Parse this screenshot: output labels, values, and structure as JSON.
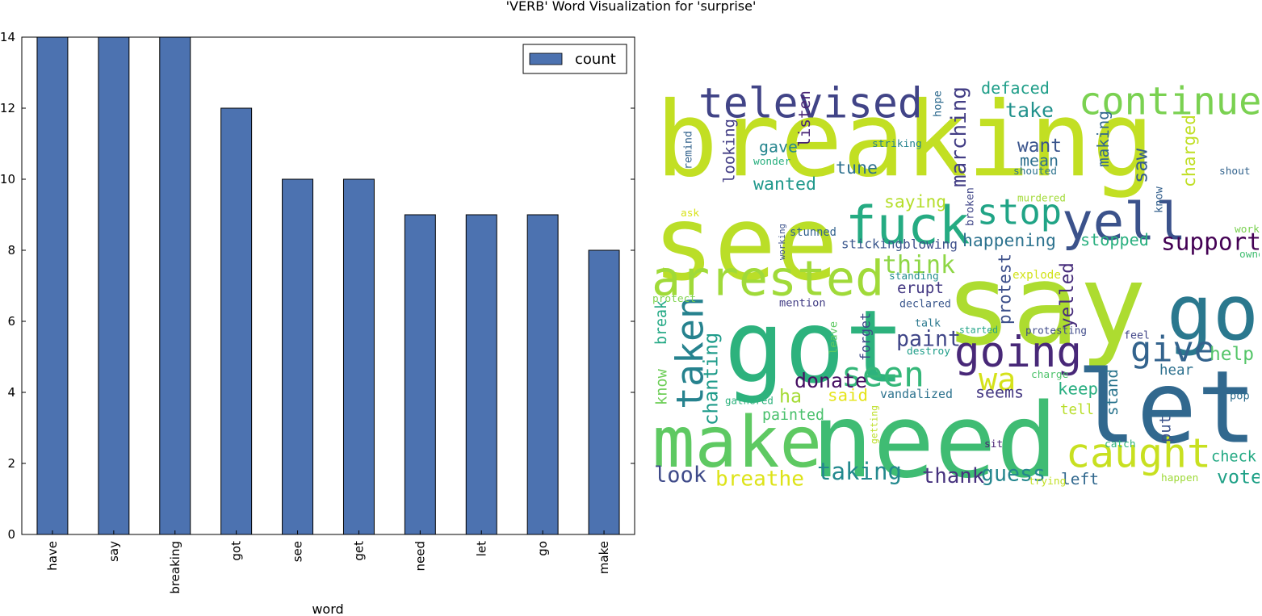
{
  "figure_title": "'VERB' Word Visualization for 'surprise'",
  "chart_data": [
    {
      "type": "bar",
      "title": "",
      "xlabel": "word",
      "ylabel": "",
      "categories": [
        "have",
        "say",
        "breaking",
        "got",
        "see",
        "get",
        "need",
        "let",
        "go",
        "make"
      ],
      "series": [
        {
          "name": "count",
          "values": [
            14,
            14,
            14,
            12,
            10,
            10,
            9,
            9,
            9,
            8
          ],
          "color": "#4c72b0"
        }
      ],
      "ylim": [
        0,
        14
      ],
      "yticks": [
        0,
        2,
        4,
        6,
        8,
        10,
        12,
        14
      ],
      "legend": "top-right",
      "grid": false
    }
  ],
  "word_cloud": {
    "background": "#ffffff",
    "words": [
      {
        "text": "breaking",
        "color": "#c2df23"
      },
      {
        "text": "see",
        "color": "#bade28"
      },
      {
        "text": "say",
        "color": "#addc30"
      },
      {
        "text": "got",
        "color": "#2db27d"
      },
      {
        "text": "need",
        "color": "#3fbc73"
      },
      {
        "text": "let",
        "color": "#31688e"
      },
      {
        "text": "make",
        "color": "#5ec962"
      },
      {
        "text": "go",
        "color": "#2a788e"
      },
      {
        "text": "televised",
        "color": "#414487"
      },
      {
        "text": "continue",
        "color": "#7ad151"
      },
      {
        "text": "fuck",
        "color": "#25ab82"
      },
      {
        "text": "yell",
        "color": "#3b528b"
      },
      {
        "text": "arrested",
        "color": "#a0da39"
      },
      {
        "text": "stop",
        "color": "#20a486"
      },
      {
        "text": "going",
        "color": "#482878"
      },
      {
        "text": "caught",
        "color": "#c8e020"
      },
      {
        "text": "taken",
        "color": "#26828e"
      },
      {
        "text": "seen",
        "color": "#35b779"
      },
      {
        "text": "give",
        "color": "#33638d"
      },
      {
        "text": "wa",
        "color": "#d5e21a"
      },
      {
        "text": "defaced",
        "color": "#1f9e89"
      },
      {
        "text": "take",
        "color": "#21918c"
      },
      {
        "text": "marching",
        "color": "#433e85"
      },
      {
        "text": "support",
        "color": "#440154"
      },
      {
        "text": "chanting",
        "color": "#1e9b8a"
      },
      {
        "text": "taking",
        "color": "#23898e"
      },
      {
        "text": "breathe",
        "color": "#dde318"
      },
      {
        "text": "look",
        "color": "#3e4a89"
      },
      {
        "text": "thank",
        "color": "#46327e"
      },
      {
        "text": "guess",
        "color": "#24868e"
      },
      {
        "text": "happening",
        "color": "#2c728e"
      },
      {
        "text": "stopped",
        "color": "#29af7f"
      },
      {
        "text": "think",
        "color": "#8ed645"
      },
      {
        "text": "protest",
        "color": "#3c4f8a"
      },
      {
        "text": "yelled",
        "color": "#472d7b"
      },
      {
        "text": "paint",
        "color": "#404688"
      },
      {
        "text": "donate",
        "color": "#471063"
      },
      {
        "text": "know",
        "color": "#6ece58"
      },
      {
        "text": "break",
        "color": "#22a884"
      },
      {
        "text": "want",
        "color": "#3a548c"
      },
      {
        "text": "mean",
        "color": "#2e6f8e"
      },
      {
        "text": "making",
        "color": "#31678e"
      },
      {
        "text": "saw",
        "color": "#365d8d"
      },
      {
        "text": "charged",
        "color": "#c0df25"
      },
      {
        "text": "saying",
        "color": "#b5de2b"
      },
      {
        "text": "help",
        "color": "#54c568"
      },
      {
        "text": "hear",
        "color": "#2d708e"
      },
      {
        "text": "keep",
        "color": "#28ae80"
      },
      {
        "text": "tell",
        "color": "#b8de29"
      },
      {
        "text": "stand",
        "color": "#2b758e"
      },
      {
        "text": "put",
        "color": "#3b528b"
      },
      {
        "text": "check",
        "color": "#23a983"
      },
      {
        "text": "vote",
        "color": "#1fa187"
      },
      {
        "text": "left",
        "color": "#31688e"
      },
      {
        "text": "seems",
        "color": "#453882"
      },
      {
        "text": "vandalized",
        "color": "#2c728e"
      },
      {
        "text": "said",
        "color": "#e5e419"
      },
      {
        "text": "ha",
        "color": "#a5db36"
      },
      {
        "text": "painted",
        "color": "#4ac16d"
      },
      {
        "text": "erupt",
        "color": "#443983"
      },
      {
        "text": "forget",
        "color": "#3e4989"
      },
      {
        "text": "looking",
        "color": "#433e85"
      },
      {
        "text": "listen",
        "color": "#482475"
      },
      {
        "text": "gave",
        "color": "#25858e"
      },
      {
        "text": "wanted",
        "color": "#1f988b"
      },
      {
        "text": "tune",
        "color": "#2d708e"
      },
      {
        "text": "sticking",
        "color": "#39568c"
      },
      {
        "text": "blowing",
        "color": "#3d4e8a"
      },
      {
        "text": "stunned",
        "color": "#33638d"
      },
      {
        "text": "working",
        "color": "#3b528b"
      },
      {
        "text": "protect",
        "color": "#7fd34e"
      },
      {
        "text": "mention",
        "color": "#433e85"
      },
      {
        "text": "declared",
        "color": "#39568c"
      },
      {
        "text": "talk",
        "color": "#2a788e"
      },
      {
        "text": "leave",
        "color": "#5ec962"
      },
      {
        "text": "destroy",
        "color": "#1f9e89"
      },
      {
        "text": "started",
        "color": "#20a386"
      },
      {
        "text": "protesting",
        "color": "#3e4a89"
      },
      {
        "text": "feel",
        "color": "#404588"
      },
      {
        "text": "standing",
        "color": "#228d8d"
      },
      {
        "text": "explode",
        "color": "#d2e21b"
      },
      {
        "text": "charge",
        "color": "#4ec36b"
      },
      {
        "text": "gathered",
        "color": "#2db27d"
      },
      {
        "text": "getting",
        "color": "#bddf26"
      },
      {
        "text": "sit",
        "color": "#482173"
      },
      {
        "text": "catch",
        "color": "#2fb47c"
      },
      {
        "text": "trying",
        "color": "#c2df23"
      },
      {
        "text": "happen",
        "color": "#9fda3a"
      },
      {
        "text": "pop",
        "color": "#2e6e8e"
      },
      {
        "text": "owned",
        "color": "#42be71"
      },
      {
        "text": "work",
        "color": "#7ad151"
      },
      {
        "text": "shout",
        "color": "#33638d"
      },
      {
        "text": "know",
        "color": "#34608d"
      },
      {
        "text": "murdered",
        "color": "#a2da37"
      },
      {
        "text": "broken",
        "color": "#404688"
      },
      {
        "text": "shouted",
        "color": "#2c738e"
      },
      {
        "text": "striking",
        "color": "#25838e"
      },
      {
        "text": "wonder",
        "color": "#29af7f"
      },
      {
        "text": "remind",
        "color": "#33638d"
      },
      {
        "text": "hope",
        "color": "#2f6b8e"
      },
      {
        "text": "ask",
        "color": "#d8e219"
      }
    ]
  }
}
